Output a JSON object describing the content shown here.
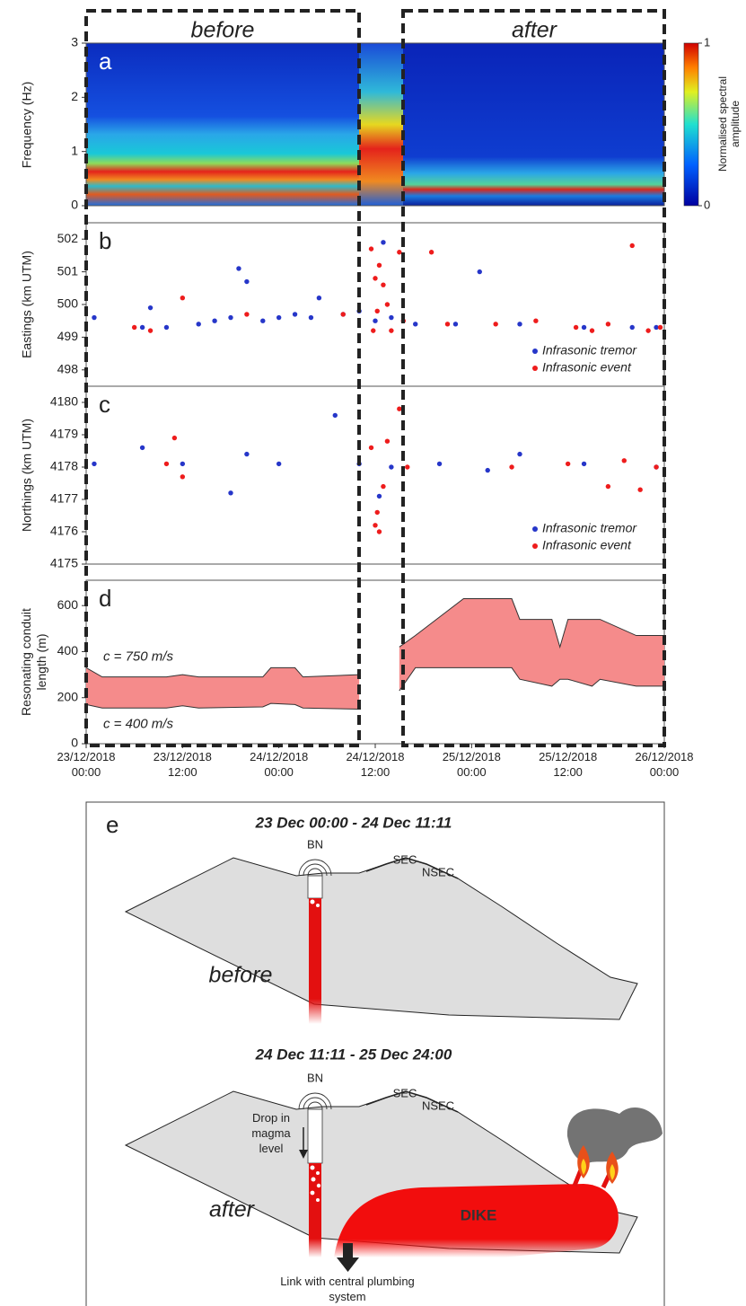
{
  "labels": {
    "before": "before",
    "after": "after"
  },
  "chart_data": [
    {
      "type": "heatmap",
      "label": "a",
      "ylabel": "Frequency (Hz)",
      "ylim": [
        0,
        3
      ],
      "yticks": [
        0,
        1,
        2,
        3
      ],
      "xlim": [
        "2018-12-23 00:00",
        "2018-12-26 00:00"
      ],
      "colorbar": {
        "label": "Normalised spectral amplitude",
        "ticks": [
          0,
          1
        ]
      }
    },
    {
      "type": "scatter",
      "label": "b",
      "ylabel": "Eastings (km UTM)",
      "ylim": [
        497.5,
        502.5
      ],
      "yticks": [
        498,
        499,
        500,
        501,
        502
      ],
      "xlim": [
        "2018-12-23 00:00",
        "2018-12-26 00:00"
      ],
      "legend": "lower right",
      "series": [
        {
          "name": "Infrasonic tremor",
          "color": "#2636c9",
          "x": [
            "2018-12-23 01:00",
            "2018-12-23 07:00",
            "2018-12-23 08:00",
            "2018-12-23 10:00",
            "2018-12-23 14:00",
            "2018-12-23 16:00",
            "2018-12-23 18:00",
            "2018-12-23 19:00",
            "2018-12-23 20:00",
            "2018-12-23 22:00",
            "2018-12-24 00:00",
            "2018-12-24 02:00",
            "2018-12-24 04:00",
            "2018-12-24 05:00",
            "2018-12-24 08:00",
            "2018-12-24 10:00",
            "2018-12-24 12:00",
            "2018-12-24 13:00",
            "2018-12-24 14:00",
            "2018-12-24 17:00",
            "2018-12-24 22:00",
            "2018-12-25 01:00",
            "2018-12-25 06:00",
            "2018-12-25 14:00",
            "2018-12-25 20:00",
            "2018-12-25 23:00"
          ],
          "values": [
            499.6,
            499.3,
            499.9,
            499.3,
            499.4,
            499.5,
            499.6,
            501.1,
            500.7,
            499.5,
            499.6,
            499.7,
            499.6,
            500.2,
            499.7,
            499.8,
            499.5,
            501.9,
            499.6,
            499.4,
            499.4,
            501.0,
            499.4,
            499.3,
            499.3,
            499.3
          ]
        },
        {
          "name": "Infrasonic event",
          "color": "#ee1c1c",
          "x": [
            "2018-12-23 06:00",
            "2018-12-23 08:00",
            "2018-12-23 12:00",
            "2018-12-23 20:00",
            "2018-12-24 08:00",
            "2018-12-24 11:30",
            "2018-12-24 11:45",
            "2018-12-24 12:00",
            "2018-12-24 12:15",
            "2018-12-24 12:30",
            "2018-12-24 13:00",
            "2018-12-24 13:30",
            "2018-12-24 14:00",
            "2018-12-24 15:00",
            "2018-12-24 15:30",
            "2018-12-24 19:00",
            "2018-12-24 21:00",
            "2018-12-25 03:00",
            "2018-12-25 08:00",
            "2018-12-25 13:00",
            "2018-12-25 15:00",
            "2018-12-25 17:00",
            "2018-12-25 20:00",
            "2018-12-25 22:00",
            "2018-12-25 23:30"
          ],
          "values": [
            499.3,
            499.2,
            500.2,
            499.7,
            499.7,
            501.7,
            499.2,
            500.8,
            499.8,
            501.2,
            500.6,
            500.0,
            499.2,
            501.6,
            499.5,
            501.6,
            499.4,
            499.4,
            499.5,
            499.3,
            499.2,
            499.4,
            501.8,
            499.2,
            499.3
          ]
        }
      ]
    },
    {
      "type": "scatter",
      "label": "c",
      "ylabel": "Northings (km UTM)",
      "ylim": [
        4175,
        4180.5
      ],
      "yticks": [
        4175,
        4176,
        4177,
        4178,
        4179,
        4180
      ],
      "xlim": [
        "2018-12-23 00:00",
        "2018-12-26 00:00"
      ],
      "legend": "lower right",
      "series": [
        {
          "name": "Infrasonic tremor",
          "color": "#2636c9",
          "x": [
            "2018-12-23 01:00",
            "2018-12-23 07:00",
            "2018-12-23 12:00",
            "2018-12-23 18:00",
            "2018-12-23 20:00",
            "2018-12-24 00:00",
            "2018-12-24 07:00",
            "2018-12-24 10:00",
            "2018-12-24 12:30",
            "2018-12-24 14:00",
            "2018-12-24 20:00",
            "2018-12-25 02:00",
            "2018-12-25 06:00",
            "2018-12-25 14:00",
            "2018-12-25 23:00"
          ],
          "values": [
            4178.1,
            4178.6,
            4178.1,
            4177.2,
            4178.4,
            4178.1,
            4179.6,
            4178.1,
            4177.1,
            4178.0,
            4178.1,
            4177.9,
            4178.4,
            4178.1,
            4178.0
          ]
        },
        {
          "name": "Infrasonic event",
          "color": "#ee1c1c",
          "x": [
            "2018-12-23 10:00",
            "2018-12-23 11:00",
            "2018-12-23 12:00",
            "2018-12-24 11:30",
            "2018-12-24 12:00",
            "2018-12-24 12:15",
            "2018-12-24 12:30",
            "2018-12-24 13:00",
            "2018-12-24 13:30",
            "2018-12-24 15:00",
            "2018-12-24 16:00",
            "2018-12-25 05:00",
            "2018-12-25 12:00",
            "2018-12-25 17:00",
            "2018-12-25 19:00",
            "2018-12-25 21:00",
            "2018-12-25 23:00"
          ],
          "values": [
            4178.1,
            4178.9,
            4177.7,
            4178.6,
            4176.2,
            4176.6,
            4176.0,
            4177.4,
            4178.8,
            4179.8,
            4178.0,
            4178.0,
            4178.1,
            4177.4,
            4178.2,
            4177.3,
            4178.0
          ]
        }
      ]
    },
    {
      "type": "band",
      "label": "d",
      "ylabel": "Resonating conduit length (m)",
      "ylim": [
        0,
        710
      ],
      "yticks": [
        0,
        200,
        400,
        600
      ],
      "xlim": [
        "2018-12-23 00:00",
        "2018-12-26 00:00"
      ],
      "color": "#f58b8b",
      "x": [
        "2018-12-23 00:00",
        "2018-12-23 02:00",
        "2018-12-23 10:00",
        "2018-12-23 12:00",
        "2018-12-23 14:00",
        "2018-12-23 22:00",
        "2018-12-23 23:00",
        "2018-12-24 02:00",
        "2018-12-24 03:00",
        "2018-12-24 10:00",
        "2018-12-24 12:00",
        "2018-12-24 15:00",
        "2018-12-24 17:00",
        "2018-12-24 23:00",
        "2018-12-25 05:00",
        "2018-12-25 06:00",
        "2018-12-25 10:00",
        "2018-12-25 11:00",
        "2018-12-25 12:00",
        "2018-12-25 15:00",
        "2018-12-25 16:00",
        "2018-12-25 20:30",
        "2018-12-26 00:00"
      ],
      "series": [
        {
          "name": "c = 750 m/s",
          "values": [
            330,
            290,
            290,
            300,
            290,
            290,
            330,
            330,
            290,
            300,
            null,
            420,
            470,
            630,
            630,
            540,
            540,
            420,
            540,
            540,
            540,
            470,
            470
          ]
        },
        {
          "name": "c = 400 m/s",
          "values": [
            170,
            155,
            155,
            165,
            155,
            160,
            175,
            170,
            155,
            150,
            null,
            230,
            330,
            330,
            330,
            280,
            250,
            280,
            280,
            250,
            280,
            250,
            250
          ]
        }
      ],
      "xticks": [
        {
          "value": "2018-12-23 00:00",
          "label": "23/12/2018 00:00"
        },
        {
          "value": "2018-12-23 12:00",
          "label": "23/12/2018 12:00"
        },
        {
          "value": "2018-12-24 00:00",
          "label": "24/12/2018 00:00"
        },
        {
          "value": "2018-12-24 12:00",
          "label": "24/12/2018 12:00"
        },
        {
          "value": "2018-12-25 00:00",
          "label": "25/12/2018 00:00"
        },
        {
          "value": "2018-12-25 12:00",
          "label": "25/12/2018 12:00"
        },
        {
          "value": "2018-12-26 00:00",
          "label": "26/12/2018 00:00"
        }
      ]
    }
  ],
  "diagram": {
    "label": "e",
    "stages": [
      {
        "title": "23 Dec 00:00 - 24 Dec 11:11",
        "vent": "BN",
        "craters": [
          "SEC",
          "NSEC"
        ],
        "state": "before"
      },
      {
        "title": "24 Dec 11:11 - 25 Dec 24:00",
        "vent": "BN",
        "craters": [
          "SEC",
          "NSEC"
        ],
        "state": "after",
        "notes": [
          "Drop in magma level",
          "DIKE",
          "Link with central plumbing system"
        ]
      }
    ]
  }
}
